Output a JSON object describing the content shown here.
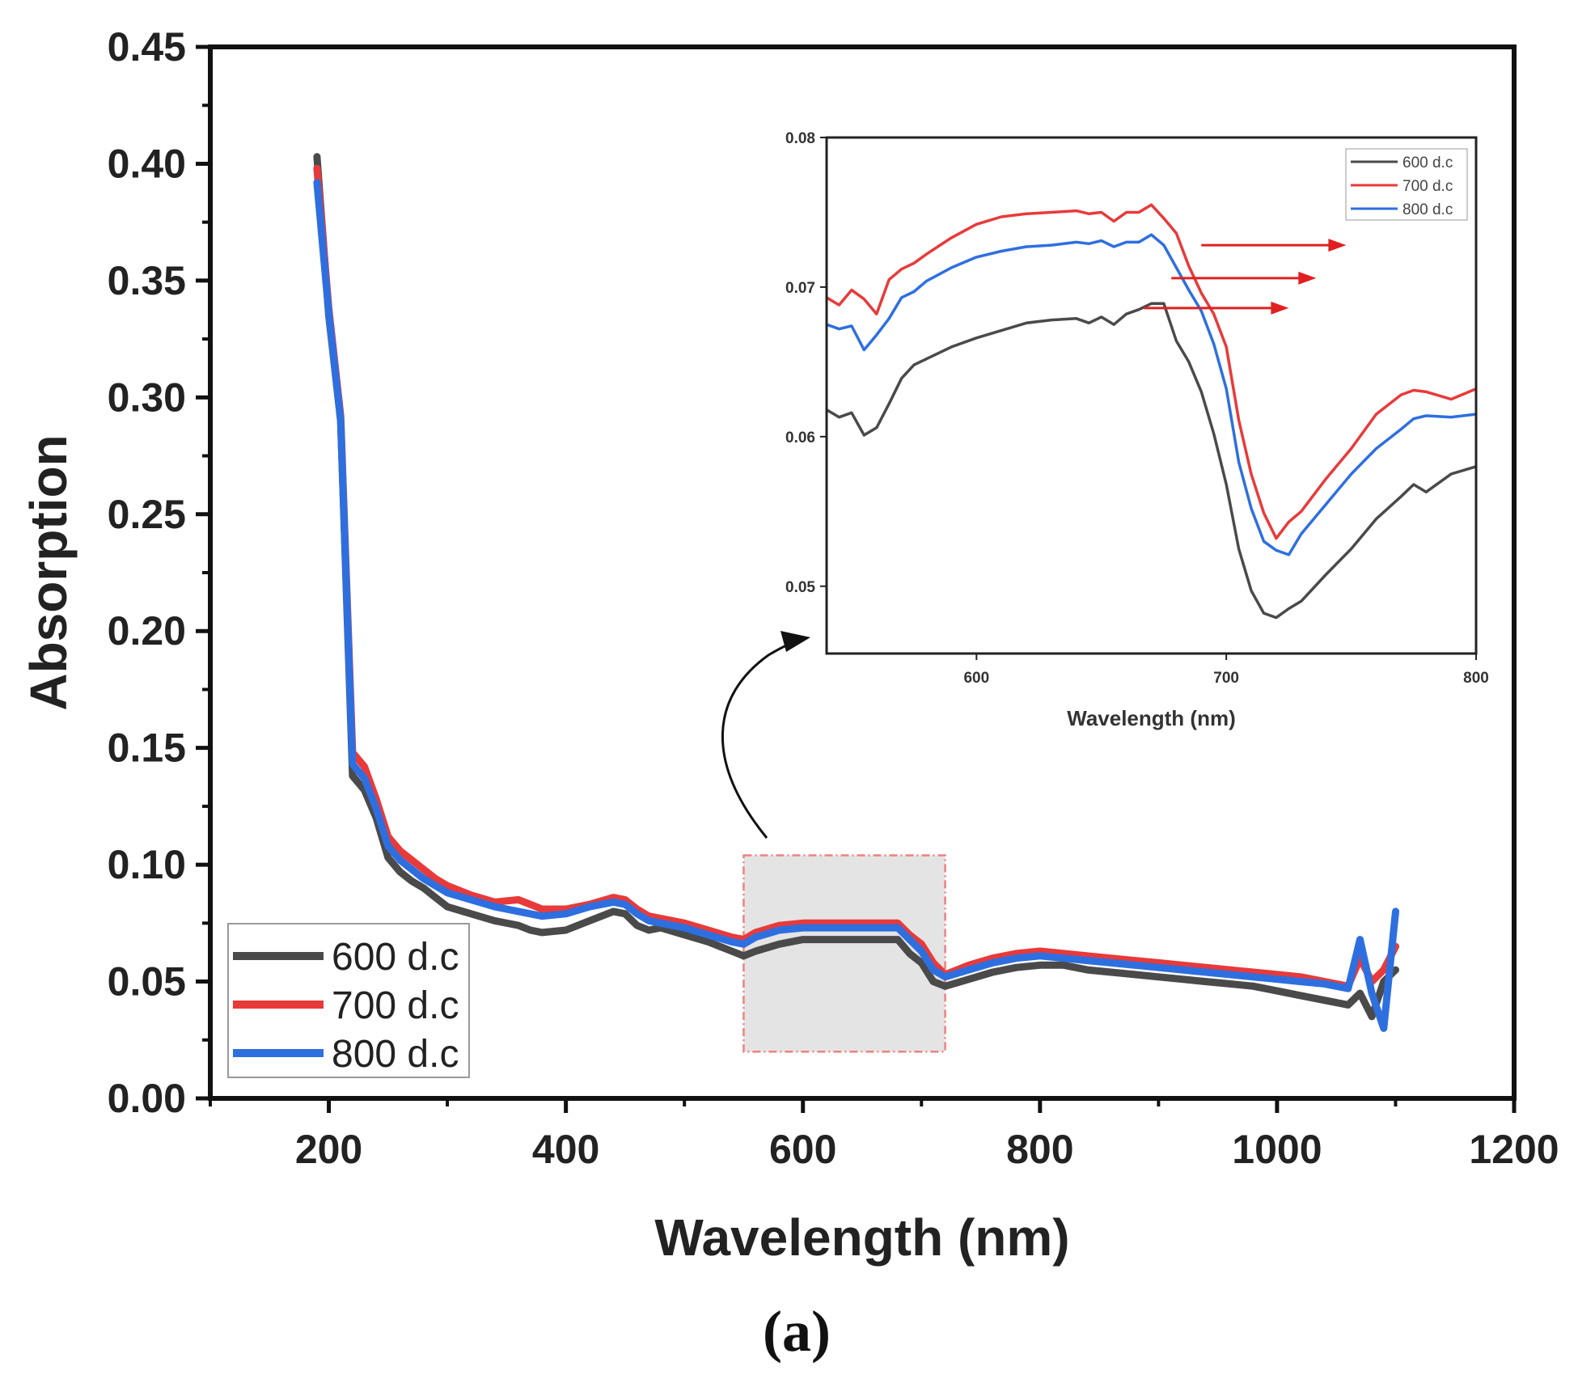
{
  "chart_data": [
    {
      "type": "line",
      "xlabel": "Wavelength (nm)",
      "ylabel": "Absorption",
      "xlim": [
        100,
        1200
      ],
      "ylim": [
        0,
        0.45
      ],
      "xticks": [
        200,
        400,
        600,
        800,
        1000,
        1200
      ],
      "xtick_labels": [
        "200",
        "400",
        "600",
        "800",
        "1000",
        "1200"
      ],
      "yticks": [
        0,
        0.05,
        0.1,
        0.15,
        0.2,
        0.25,
        0.3,
        0.35,
        0.4,
        0.45
      ],
      "ytick_labels": [
        "0.00",
        "0.05",
        "0.10",
        "0.15",
        "0.20",
        "0.25",
        "0.30",
        "0.35",
        "0.40",
        "0.45"
      ],
      "grid": false,
      "legend_position": "bottom-left",
      "highlight_region": {
        "x": [
          550,
          720
        ],
        "y": [
          0.02,
          0.104
        ]
      },
      "series": [
        {
          "name": "600 d.c",
          "color": "#4a4a4a",
          "x": [
            190,
            200,
            210,
            220,
            230,
            240,
            250,
            260,
            270,
            280,
            290,
            300,
            320,
            340,
            360,
            370,
            380,
            400,
            420,
            440,
            450,
            460,
            470,
            480,
            500,
            520,
            540,
            550,
            560,
            580,
            600,
            620,
            640,
            660,
            680,
            690,
            700,
            710,
            720,
            740,
            760,
            780,
            800,
            820,
            840,
            860,
            880,
            900,
            920,
            940,
            960,
            980,
            1000,
            1020,
            1040,
            1060,
            1070,
            1080,
            1090,
            1100
          ],
          "y": [
            0.403,
            0.335,
            0.29,
            0.138,
            0.132,
            0.12,
            0.103,
            0.097,
            0.093,
            0.09,
            0.086,
            0.082,
            0.079,
            0.076,
            0.074,
            0.072,
            0.071,
            0.072,
            0.076,
            0.08,
            0.079,
            0.074,
            0.072,
            0.073,
            0.07,
            0.067,
            0.063,
            0.061,
            0.063,
            0.066,
            0.068,
            0.068,
            0.068,
            0.068,
            0.068,
            0.062,
            0.058,
            0.05,
            0.048,
            0.051,
            0.054,
            0.056,
            0.057,
            0.057,
            0.055,
            0.054,
            0.053,
            0.052,
            0.051,
            0.05,
            0.049,
            0.048,
            0.046,
            0.044,
            0.042,
            0.04,
            0.045,
            0.035,
            0.05,
            0.055
          ]
        },
        {
          "name": "700 d.c",
          "color": "#e83a3a",
          "x": [
            190,
            200,
            210,
            220,
            230,
            240,
            250,
            260,
            270,
            280,
            290,
            300,
            320,
            340,
            360,
            370,
            380,
            400,
            420,
            440,
            450,
            460,
            470,
            480,
            500,
            520,
            540,
            550,
            560,
            580,
            600,
            620,
            640,
            660,
            680,
            690,
            700,
            710,
            720,
            740,
            760,
            780,
            800,
            820,
            840,
            860,
            880,
            900,
            920,
            940,
            960,
            980,
            1000,
            1020,
            1040,
            1060,
            1070,
            1080,
            1090,
            1100
          ],
          "y": [
            0.398,
            0.338,
            0.292,
            0.148,
            0.142,
            0.128,
            0.112,
            0.106,
            0.102,
            0.098,
            0.094,
            0.091,
            0.087,
            0.084,
            0.085,
            0.083,
            0.081,
            0.081,
            0.083,
            0.086,
            0.085,
            0.081,
            0.078,
            0.077,
            0.075,
            0.072,
            0.069,
            0.068,
            0.071,
            0.074,
            0.075,
            0.075,
            0.075,
            0.075,
            0.075,
            0.07,
            0.066,
            0.058,
            0.053,
            0.057,
            0.06,
            0.062,
            0.063,
            0.062,
            0.061,
            0.06,
            0.059,
            0.058,
            0.057,
            0.056,
            0.055,
            0.054,
            0.053,
            0.052,
            0.05,
            0.048,
            0.06,
            0.05,
            0.055,
            0.065
          ]
        },
        {
          "name": "800 d.c",
          "color": "#2e6fe0",
          "x": [
            190,
            200,
            210,
            220,
            230,
            240,
            250,
            260,
            270,
            280,
            290,
            300,
            320,
            340,
            360,
            370,
            380,
            400,
            420,
            440,
            450,
            460,
            470,
            480,
            500,
            520,
            540,
            550,
            560,
            580,
            600,
            620,
            640,
            660,
            680,
            690,
            700,
            710,
            720,
            740,
            760,
            780,
            800,
            820,
            840,
            860,
            880,
            900,
            920,
            940,
            960,
            980,
            1000,
            1020,
            1040,
            1060,
            1070,
            1080,
            1090,
            1100
          ],
          "y": [
            0.392,
            0.336,
            0.29,
            0.143,
            0.137,
            0.124,
            0.108,
            0.102,
            0.098,
            0.094,
            0.091,
            0.088,
            0.085,
            0.082,
            0.08,
            0.079,
            0.078,
            0.079,
            0.082,
            0.084,
            0.083,
            0.079,
            0.076,
            0.075,
            0.073,
            0.07,
            0.067,
            0.066,
            0.069,
            0.072,
            0.073,
            0.073,
            0.073,
            0.073,
            0.073,
            0.068,
            0.063,
            0.055,
            0.052,
            0.055,
            0.058,
            0.06,
            0.061,
            0.06,
            0.059,
            0.058,
            0.057,
            0.056,
            0.055,
            0.054,
            0.053,
            0.052,
            0.051,
            0.05,
            0.049,
            0.047,
            0.068,
            0.045,
            0.03,
            0.08
          ]
        }
      ]
    },
    {
      "type": "line",
      "xlabel": "Wavelength (nm)",
      "ylabel": "",
      "xlim": [
        540,
        800
      ],
      "ylim": [
        0.0455,
        0.08
      ],
      "xticks": [
        600,
        700,
        800
      ],
      "xtick_labels": [
        "600",
        "700",
        "800"
      ],
      "yticks": [
        0.05,
        0.06,
        0.07,
        0.08
      ],
      "ytick_labels": [
        "0.05",
        "0.06",
        "0.07",
        "0.08"
      ],
      "grid": false,
      "legend_position": "top-right",
      "series": [
        {
          "name": "600 d.c",
          "color": "#4a4a4a",
          "x": [
            540,
            545,
            550,
            555,
            560,
            565,
            570,
            575,
            580,
            590,
            600,
            610,
            620,
            630,
            640,
            645,
            650,
            655,
            660,
            665,
            670,
            675,
            680,
            685,
            690,
            695,
            700,
            705,
            710,
            715,
            720,
            725,
            730,
            740,
            750,
            760,
            770,
            775,
            780,
            790,
            800
          ],
          "y": [
            0.0618,
            0.0613,
            0.0616,
            0.0601,
            0.0606,
            0.0622,
            0.0639,
            0.0648,
            0.0652,
            0.066,
            0.0666,
            0.0671,
            0.0676,
            0.0678,
            0.0679,
            0.0676,
            0.068,
            0.0675,
            0.0682,
            0.0685,
            0.0689,
            0.0689,
            0.0664,
            0.065,
            0.063,
            0.0602,
            0.0568,
            0.0525,
            0.0497,
            0.0482,
            0.0479,
            0.0485,
            0.049,
            0.0508,
            0.0525,
            0.0545,
            0.056,
            0.0568,
            0.0563,
            0.0575,
            0.058
          ]
        },
        {
          "name": "700 d.c",
          "color": "#e83a3a",
          "x": [
            540,
            545,
            550,
            555,
            560,
            565,
            570,
            575,
            580,
            590,
            600,
            610,
            620,
            630,
            640,
            645,
            650,
            655,
            660,
            665,
            670,
            675,
            680,
            685,
            690,
            695,
            700,
            705,
            710,
            715,
            720,
            725,
            730,
            740,
            750,
            760,
            770,
            775,
            780,
            790,
            800
          ],
          "y": [
            0.0693,
            0.0688,
            0.0698,
            0.0692,
            0.0682,
            0.0705,
            0.0712,
            0.0716,
            0.0722,
            0.0733,
            0.0742,
            0.0747,
            0.0749,
            0.075,
            0.0751,
            0.0749,
            0.075,
            0.0744,
            0.075,
            0.075,
            0.0755,
            0.0746,
            0.0736,
            0.0714,
            0.0696,
            0.0682,
            0.066,
            0.0611,
            0.0575,
            0.0549,
            0.0532,
            0.0543,
            0.055,
            0.0572,
            0.0592,
            0.0615,
            0.0628,
            0.0631,
            0.063,
            0.0625,
            0.0632
          ]
        },
        {
          "name": "800 d.c",
          "color": "#2e6fe0",
          "x": [
            540,
            545,
            550,
            555,
            560,
            565,
            570,
            575,
            580,
            590,
            600,
            610,
            620,
            630,
            640,
            645,
            650,
            655,
            660,
            665,
            670,
            675,
            680,
            685,
            690,
            695,
            700,
            705,
            710,
            715,
            720,
            725,
            730,
            740,
            750,
            760,
            770,
            775,
            780,
            790,
            800
          ],
          "y": [
            0.0675,
            0.0672,
            0.0674,
            0.0658,
            0.0668,
            0.0679,
            0.0693,
            0.0697,
            0.0704,
            0.0713,
            0.072,
            0.0724,
            0.0727,
            0.0728,
            0.073,
            0.0729,
            0.0731,
            0.0727,
            0.073,
            0.073,
            0.0735,
            0.0728,
            0.0713,
            0.0698,
            0.0684,
            0.0662,
            0.0632,
            0.0583,
            0.0552,
            0.053,
            0.0524,
            0.0521,
            0.0535,
            0.0555,
            0.0575,
            0.0592,
            0.0605,
            0.0612,
            0.0614,
            0.0613,
            0.0615
          ]
        }
      ]
    }
  ],
  "inset_arrows_count": 3,
  "panel_label": "(a)"
}
